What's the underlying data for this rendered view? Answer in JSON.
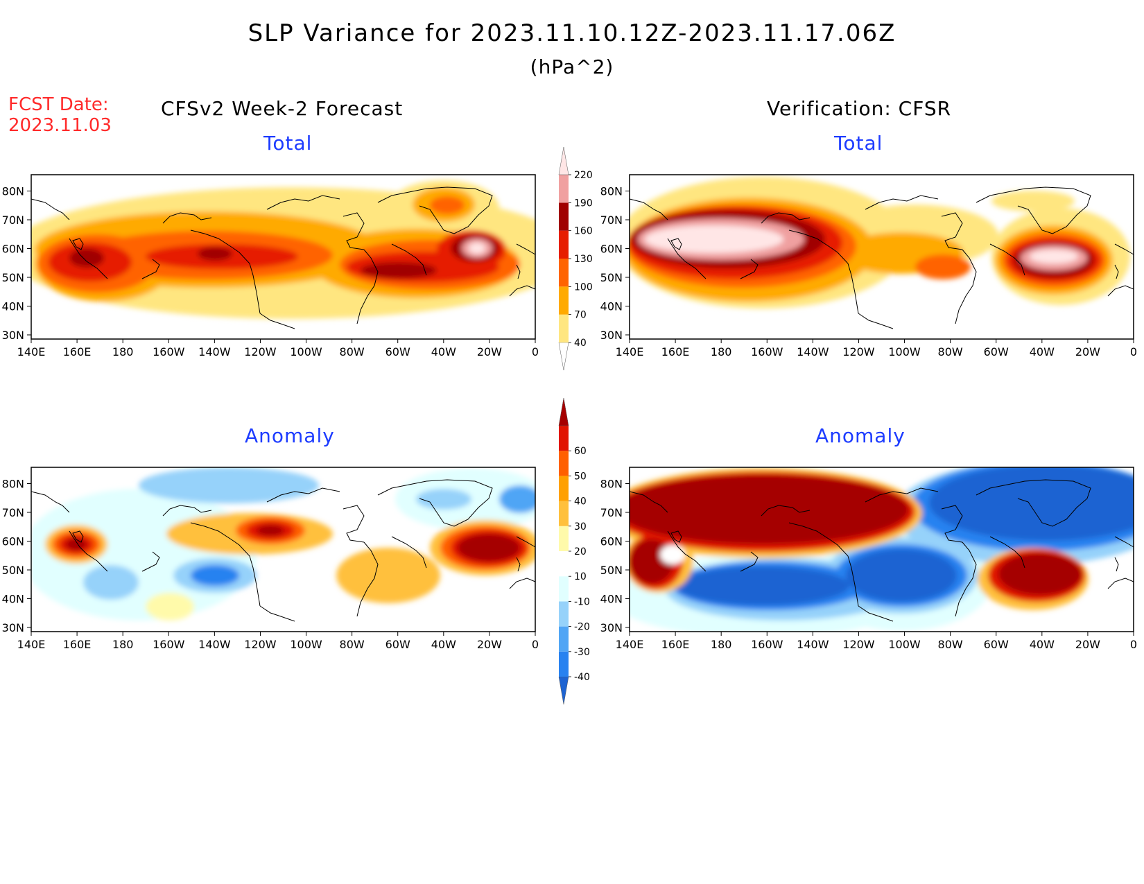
{
  "figure": {
    "title": "SLP Variance for 2023.11.10.12Z-2023.11.17.06Z",
    "units": "(hPa^2)",
    "fcst_date_label": "FCST Date:",
    "fcst_date": "2023.11.03",
    "left_column_title": "CFSv2 Week-2 Forecast",
    "right_column_title": "Verification: CFSR"
  },
  "panels": [
    {
      "id": "fcst-total",
      "subtitle": "Total"
    },
    {
      "id": "verif-total",
      "subtitle": "Total"
    },
    {
      "id": "fcst-anomaly",
      "subtitle": "Anomaly"
    },
    {
      "id": "verif-anomaly",
      "subtitle": "Anomaly"
    }
  ],
  "axes": {
    "lon_labels": [
      "140E",
      "160E",
      "180",
      "160W",
      "140W",
      "120W",
      "100W",
      "80W",
      "60W",
      "40W",
      "20W",
      "0"
    ],
    "lat_labels": [
      "30N",
      "40N",
      "50N",
      "60N",
      "70N",
      "80N"
    ]
  },
  "colorbar_total": {
    "levels": [
      "40",
      "70",
      "100",
      "130",
      "160",
      "190",
      "220"
    ],
    "colors": [
      "#ffffff",
      "#ffe680",
      "#ffaa00",
      "#ff6400",
      "#e61e00",
      "#a00000",
      "#f0a0a0",
      "#ffe6e6"
    ]
  },
  "colorbar_anomaly": {
    "levels": [
      "-40",
      "-30",
      "-20",
      "-10",
      "10",
      "20",
      "30",
      "40",
      "50",
      "60"
    ],
    "colors": [
      "#1e64d2",
      "#2882f0",
      "#50a5f5",
      "#96d2fa",
      "#e1ffff",
      "#ffffff",
      "#fffaaa",
      "#ffc03c",
      "#ffa000",
      "#ff6000",
      "#e11400",
      "#a50000"
    ]
  }
}
